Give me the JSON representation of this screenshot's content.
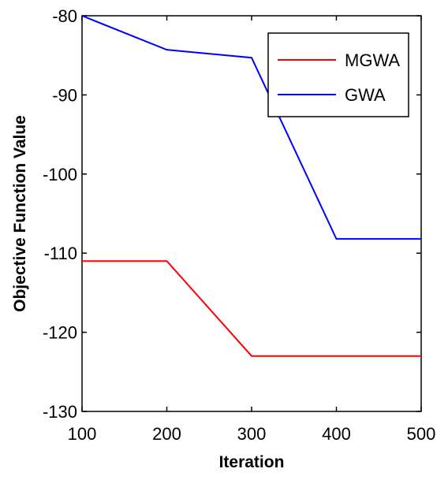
{
  "chart_data": {
    "type": "line",
    "xlabel": "Iteration",
    "ylabel": "Objective Function Value",
    "xlim": [
      100,
      500
    ],
    "ylim": [
      -130,
      -80
    ],
    "xticks": [
      100,
      200,
      300,
      400,
      500
    ],
    "yticks": [
      -80,
      -90,
      -100,
      -110,
      -120,
      -130
    ],
    "grid": false,
    "legend_position": "top-right",
    "series": [
      {
        "name": "MGWA",
        "color": "#ff0000",
        "x": [
          100,
          200,
          300,
          400,
          500
        ],
        "y": [
          -111,
          -111,
          -123,
          -123,
          -123
        ]
      },
      {
        "name": "GWA",
        "color": "#0000ff",
        "x": [
          100,
          200,
          300,
          400,
          500
        ],
        "y": [
          -80,
          -84.3,
          -85.3,
          -108.2,
          -108.2
        ]
      }
    ]
  }
}
